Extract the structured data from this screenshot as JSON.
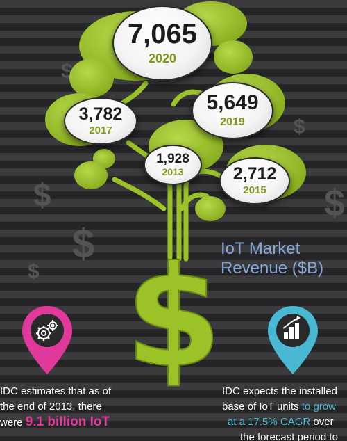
{
  "tree": {
    "title_line1": "IoT Market",
    "title_line2": "Revenue ($B)",
    "bubbles": [
      {
        "value": "7,065",
        "year": "2020"
      },
      {
        "value": "5,649",
        "year": "2019"
      },
      {
        "value": "3,782",
        "year": "2017"
      },
      {
        "value": "1,928",
        "year": "2013"
      },
      {
        "value": "2,712",
        "year": "2015"
      }
    ]
  },
  "background_symbols": [
    "$",
    "$",
    "$",
    "$",
    "$",
    "$"
  ],
  "left_block": {
    "icon": "gears-icon",
    "line1": "IDC estimates that as of",
    "line2": "the end of 2013, there",
    "line3_prefix": "were ",
    "line3_highlight": "9.1 billion IoT"
  },
  "right_block": {
    "icon": "bar-chart-icon",
    "line1": "IDC expects the installed",
    "line2_prefix": "base of IoT units ",
    "line2_highlight": "to grow",
    "line3_highlight": "at a 17.5% CAGR",
    "line3_suffix": " over",
    "line4": "the forecast period to"
  },
  "colors": {
    "leaf_green": "#9bc328",
    "year_green": "#7e9b16",
    "title_blue": "#86a6d8",
    "pin_magenta": "#e0399b",
    "pin_blue": "#49b8d3"
  }
}
